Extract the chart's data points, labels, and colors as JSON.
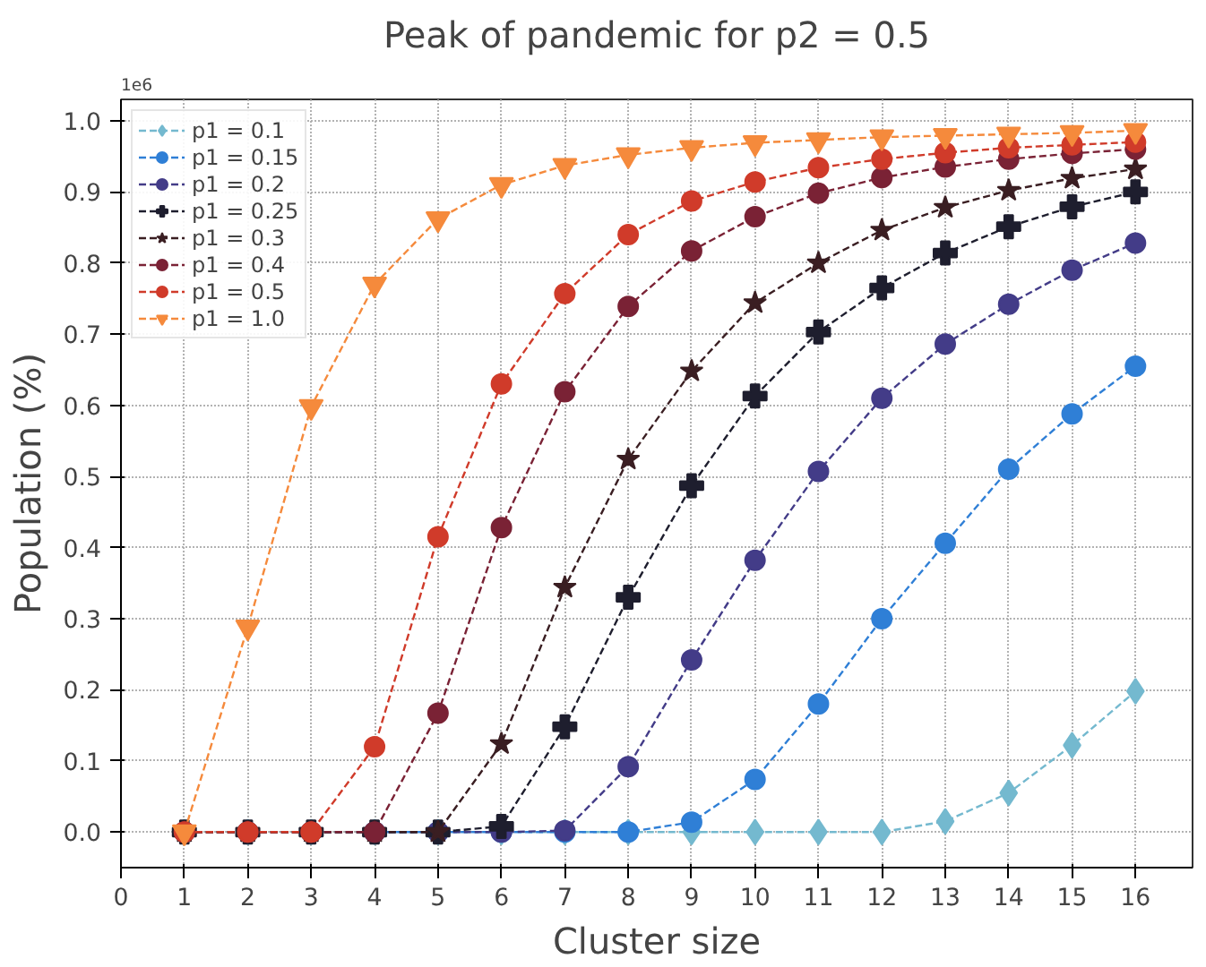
{
  "chart_data": {
    "type": "line",
    "title": "Peak of pandemic for p2 = 0.5",
    "xlabel": "Cluster size",
    "ylabel": "Population (%)",
    "annotations": [
      "1e6"
    ],
    "x": [
      1,
      2,
      3,
      4,
      5,
      6,
      7,
      8,
      9,
      10,
      11,
      12,
      13,
      14,
      15,
      16
    ],
    "xlim": [
      0,
      16.9
    ],
    "xticks": [
      0,
      1,
      2,
      3,
      4,
      5,
      6,
      7,
      8,
      9,
      10,
      11,
      12,
      13,
      14,
      15,
      16
    ],
    "ylim": [
      -0.05,
      1.03
    ],
    "yticks": [
      {
        "value": 0,
        "label": "0.0"
      },
      0.1,
      0.2,
      0.3,
      0.4,
      0.5,
      0.6,
      0.7,
      0.8,
      0.9,
      {
        "value": 1,
        "label": "1.0"
      }
    ],
    "grid": true,
    "legend": "top left",
    "line_style": "dashed",
    "series": [
      {
        "name": "p1 = 0.1",
        "color": "#74b9cf",
        "marker": "diamond",
        "values": [
          0,
          0,
          0,
          0,
          0,
          0,
          0,
          0,
          0,
          0,
          0,
          0,
          0.015,
          0.055,
          0.122,
          0.198
        ]
      },
      {
        "name": "p1 = 0.15",
        "color": "#2f7fd6",
        "marker": "circle",
        "values": [
          null,
          null,
          null,
          0,
          0,
          0,
          0,
          0,
          0.014,
          0.074,
          0.18,
          0.3,
          0.406,
          0.51,
          0.588,
          0.655
        ]
      },
      {
        "name": "p1 = 0.2",
        "color": "#433c88",
        "marker": "circle",
        "values": [
          0,
          0,
          0,
          0,
          0,
          0,
          0.002,
          0.092,
          0.242,
          0.382,
          0.507,
          0.61,
          0.686,
          0.742,
          0.79,
          0.828
        ]
      },
      {
        "name": "p1 = 0.25",
        "color": "#1e1e2e",
        "marker": "cross",
        "values": [
          0,
          0,
          0,
          0,
          0,
          0.008,
          0.148,
          0.33,
          0.487,
          0.613,
          0.703,
          0.765,
          0.814,
          0.851,
          0.879,
          0.9
        ]
      },
      {
        "name": "p1 = 0.3",
        "color": "#3a1e22",
        "marker": "star",
        "values": [
          0,
          0,
          0,
          0,
          0,
          0.124,
          0.344,
          0.524,
          0.648,
          0.744,
          0.8,
          0.846,
          0.878,
          0.902,
          0.919,
          0.932
        ]
      },
      {
        "name": "p1 = 0.4",
        "color": "#7a2235",
        "marker": "circle",
        "values": [
          0,
          0,
          0,
          0,
          0.167,
          0.428,
          0.619,
          0.739,
          0.817,
          0.865,
          0.898,
          0.92,
          0.935,
          0.946,
          0.954,
          0.96
        ]
      },
      {
        "name": "p1 = 0.5",
        "color": "#d03b2a",
        "marker": "circle",
        "values": [
          0,
          0,
          0,
          0.12,
          0.415,
          0.63,
          0.757,
          0.84,
          0.887,
          0.914,
          0.934,
          0.946,
          0.955,
          0.962,
          0.966,
          0.97
        ]
      },
      {
        "name": "p1 = 1.0",
        "color": "#f58a3c",
        "marker": "triangle",
        "values": [
          0,
          0.288,
          0.598,
          0.77,
          0.862,
          0.91,
          0.937,
          0.952,
          0.962,
          0.969,
          0.973,
          0.977,
          0.979,
          0.981,
          0.983,
          0.986
        ]
      }
    ]
  }
}
